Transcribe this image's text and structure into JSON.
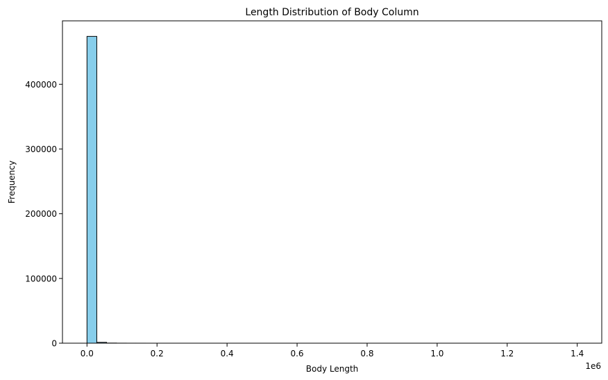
{
  "chart_data": {
    "type": "bar",
    "title": "Length Distribution of Body Column",
    "xlabel": "Body Length",
    "ylabel": "Frequency",
    "x_offset_label": "1e6",
    "xlim": [
      -70000,
      1470000
    ],
    "ylim": [
      0,
      498000
    ],
    "x_ticks": [
      0,
      200000,
      400000,
      600000,
      800000,
      1000000,
      1200000,
      1400000
    ],
    "x_tick_labels": [
      "0.0",
      "0.2",
      "0.4",
      "0.6",
      "0.8",
      "1.0",
      "1.2",
      "1.4"
    ],
    "y_ticks": [
      0,
      100000,
      200000,
      300000,
      400000
    ],
    "y_tick_labels": [
      "0",
      "100000",
      "200000",
      "300000",
      "400000"
    ],
    "bins": {
      "start": 0,
      "width": 28000,
      "counts": [
        474000,
        1300,
        200,
        60,
        20,
        8,
        4,
        2,
        1,
        1,
        1,
        0,
        0,
        0,
        0,
        0,
        0,
        0,
        0,
        0,
        0,
        0,
        0,
        0,
        0,
        0,
        0,
        0,
        0,
        0,
        0,
        0,
        0,
        0,
        0,
        0,
        0,
        0,
        0,
        0,
        0,
        0,
        0,
        0,
        0,
        0,
        0,
        0,
        0,
        1
      ]
    },
    "grid": false,
    "colors": {
      "bar_fill": "#87ceeb",
      "bar_edge": "#000000"
    }
  }
}
